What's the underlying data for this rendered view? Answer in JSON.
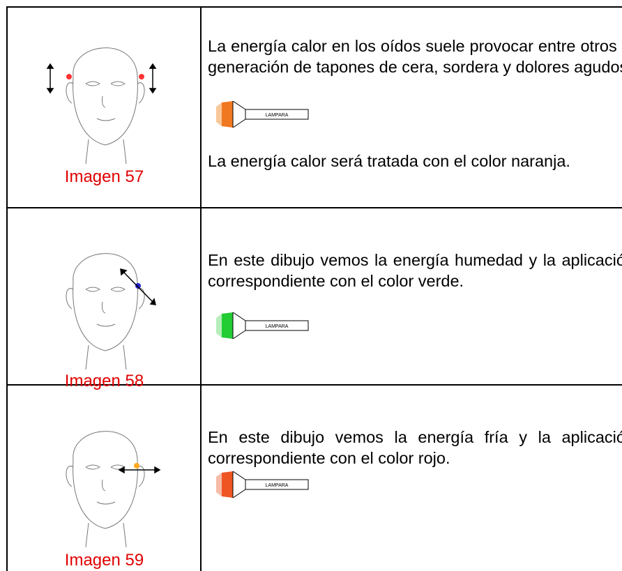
{
  "table": {
    "rows": [
      {
        "caption": "Imagen 57",
        "paragraphs": [
          "La energía calor en los oídos suele provocar entre otros la generación de tapones de cera, sordera y dolores agudos.",
          "La energía calor será tratada con el color naranja."
        ],
        "lamp_label": "LAMPARA"
      },
      {
        "caption": "Imagen 58",
        "paragraphs": [
          "En este dibujo vemos la energía humedad y la aplicación correspondiente con el color verde."
        ],
        "lamp_label": "LAMPARA"
      },
      {
        "caption": "Imagen 59",
        "paragraphs": [
          "En este dibujo vemos la energía fría y la aplicación correspondiente con el color rojo."
        ],
        "lamp_label": "LAMPARA"
      }
    ]
  }
}
